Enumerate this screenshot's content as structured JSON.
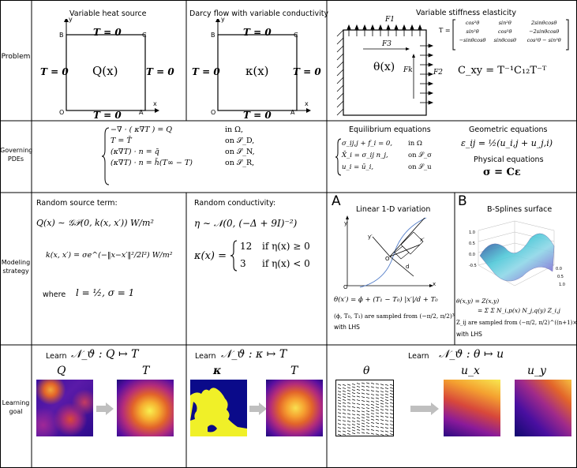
{
  "rows": {
    "problem": "Problem",
    "pdes": "Governing PDEs",
    "modeling": "Modeling strategy",
    "learning": "Learning goal"
  },
  "problem": {
    "p1": {
      "title": "Variable heat source",
      "top": "T = 0",
      "bottom": "T = 0",
      "left": "T = 0",
      "right": "T = 0",
      "center": "Q(x)",
      "corner_b": "B",
      "corner_c": "C",
      "corner_o": "O",
      "corner_a": "A",
      "axis_x": "x",
      "axis_y": "y"
    },
    "p2": {
      "title": "Darcy flow with variable conductivity",
      "top": "T = 0",
      "bottom": "T = 0",
      "left": "T = 0",
      "right": "T = 0",
      "center": "κ(x)",
      "corner_b": "B",
      "corner_c": "C",
      "corner_o": "O",
      "corner_a": "A",
      "axis_x": "x",
      "axis_y": "y"
    },
    "p3": {
      "title": "Variable stiffness elasticity",
      "f1": "F1",
      "f2": "F2",
      "f3": "F3",
      "fk": "Fk",
      "theta": "θ(x)",
      "T_label": "T =",
      "matrix": [
        [
          "cos²θ",
          "sin²θ",
          "2sinθcosθ"
        ],
        [
          "sin²θ",
          "cos²θ",
          "−2sinθcosθ"
        ],
        [
          "−sinθcosθ",
          "sinθcosθ",
          "cos²θ − sin²θ"
        ]
      ],
      "cxy": "C_xy = T⁻¹C₁₂T⁻ᵀ"
    }
  },
  "pdes": {
    "heat": [
      {
        "eq": "−∇ · ( κ∇T ) = Q",
        "dom": "in Ω,"
      },
      {
        "eq": "T = T̄",
        "dom": "on 𝒮_D,"
      },
      {
        "eq": "(κ∇T) · n = q̄",
        "dom": "on 𝒮_N,"
      },
      {
        "eq": "(κ∇T) · n = h̄(T∞ − T)",
        "dom": "on 𝒮_R,"
      }
    ],
    "eq_title": "Equilibrium equations",
    "equilibrium": [
      {
        "eq": "σ_ij,j + f_i = 0,",
        "dom": "in Ω"
      },
      {
        "eq": "X̄_i = σ_ij n_j,",
        "dom": "on 𝒮_σ"
      },
      {
        "eq": "u_i = ū_i,",
        "dom": "on 𝒮_u"
      }
    ],
    "geo_title": "Geometric equations",
    "geometric": "ε_ij = ½(u_i,j + u_j,i)",
    "phys_title": "Physical equations",
    "physical": "σ = Cε"
  },
  "modeling": {
    "src_title": "Random source term:",
    "src_eq1": "Q(x) ∼ 𝒢𝒫(0, k(x, x′)) W/m²",
    "src_eq2": "k(x, x′) = σe^(−‖x−x′‖²/2l²) W/m²",
    "src_where": "where",
    "src_eq3": "l = ½, σ = 1",
    "cond_title": "Random conductivity:",
    "cond_eq1": "η ∼ 𝒩(0, (−Δ + 9I)⁻²)",
    "cond_case_lhs": "κ(x) =",
    "cond_case1": "12",
    "cond_if1": "if η(x) ≥ 0",
    "cond_case2": "3",
    "cond_if2": "if η(x) < 0",
    "lin_tag": "A",
    "lin_title": "Linear 1-D variation",
    "lin_eq": "θ(x′) = ϕ + (T₁ − T₀) |x′|/d + T₀",
    "lin_note": "(ϕ, T₀, T₁) are sampled from (−π/2, π/2)³",
    "lin_lhs": "with LHS",
    "bs_tag": "B",
    "bs_title": "B-Splines surface",
    "bs_eq1": "θ(x,y) = Z(x,y)",
    "bs_eq2": "= Σ Σ N_i,p(x) N_j,q(y) Z_i,j",
    "bs_note": "Z_ij are sampled from (−π/2, π/2)^((n+1)×(m+1))",
    "bs_lhs": "with LHS"
  },
  "learning": {
    "l1": {
      "learn": "Learn",
      "map": "𝒩_ϑ : Q ↦ T",
      "in": "Q",
      "out": "T"
    },
    "l2": {
      "learn": "Learn",
      "map": "𝒩_ϑ : κ ↦ T",
      "in": "κ",
      "out": "T"
    },
    "l3": {
      "learn": "Learn",
      "map": "𝒩_ϑ : θ ↦ u",
      "in": "θ",
      "out1": "u_x",
      "out2": "u_y"
    }
  }
}
